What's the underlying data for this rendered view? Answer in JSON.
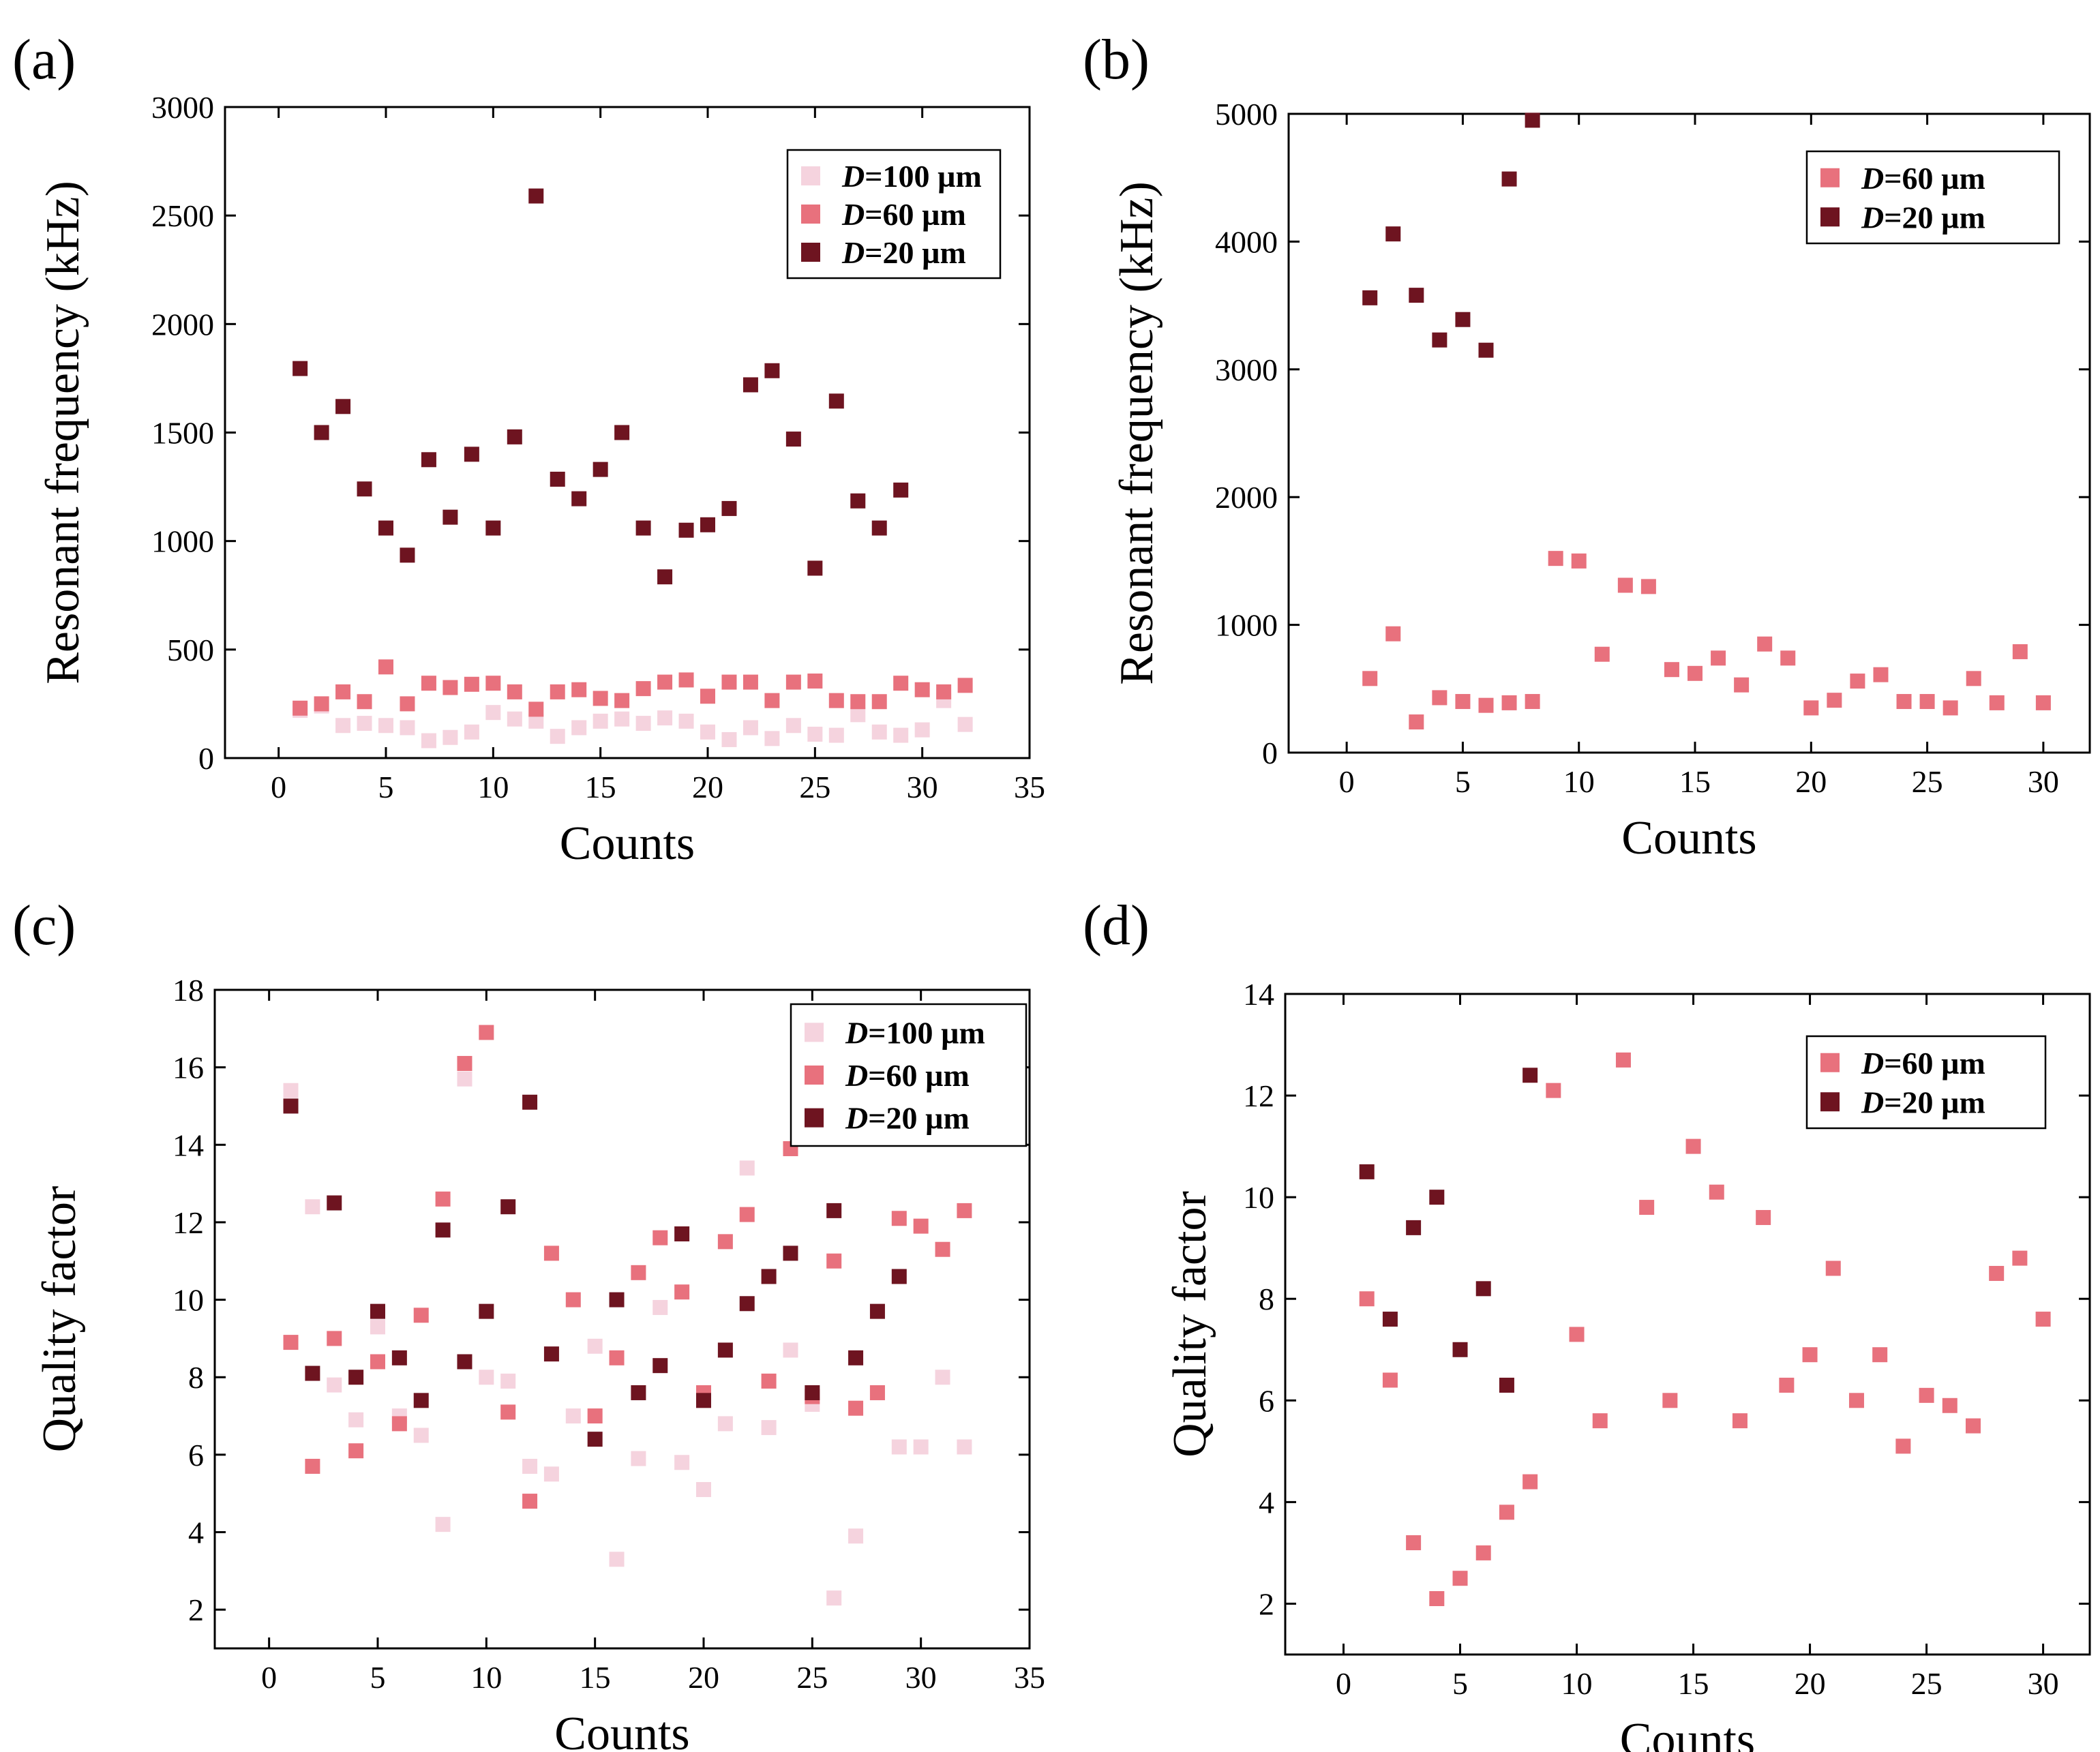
{
  "colors": {
    "d100": "#f5d3de",
    "d60": "#e8717d",
    "d20": "#6e1420"
  },
  "legend": {
    "prefix": "D",
    "items": {
      "d100": "=100 µm",
      "d60": "=60 µm",
      "d20": "=20 µm"
    }
  },
  "chart_data": [
    {
      "panel": "(a)",
      "type": "scatter",
      "xlabel": "Counts",
      "ylabel": "Resonant frequency (kHz)",
      "xlim": [
        -2.5,
        35
      ],
      "ylim": [
        0,
        3000
      ],
      "xticks": [
        0,
        5,
        10,
        15,
        20,
        25,
        30,
        35
      ],
      "yticks": [
        0,
        500,
        1000,
        1500,
        2000,
        2500,
        3000
      ],
      "legend_position": "top-right",
      "series": [
        {
          "key": "d100",
          "name": "D=100 µm",
          "x": [
            1,
            2,
            3,
            4,
            5,
            6,
            7,
            8,
            9,
            10,
            11,
            12,
            13,
            14,
            15,
            16,
            17,
            18,
            19,
            20,
            21,
            22,
            23,
            24,
            25,
            26,
            27,
            28,
            29,
            30,
            31,
            32
          ],
          "y": [
            220,
            240,
            150,
            160,
            150,
            140,
            80,
            95,
            120,
            210,
            180,
            170,
            100,
            140,
            170,
            180,
            160,
            185,
            170,
            120,
            85,
            140,
            90,
            150,
            110,
            105,
            200,
            120,
            105,
            130,
            265,
            155
          ]
        },
        {
          "key": "d60",
          "name": "D=60 µm",
          "x": [
            1,
            2,
            3,
            4,
            5,
            6,
            7,
            8,
            9,
            10,
            11,
            12,
            13,
            14,
            15,
            16,
            17,
            18,
            19,
            20,
            21,
            22,
            23,
            24,
            25,
            26,
            27,
            28,
            29,
            30,
            31,
            32
          ],
          "y": [
            230,
            250,
            305,
            260,
            420,
            250,
            345,
            325,
            340,
            345,
            305,
            225,
            305,
            315,
            275,
            265,
            320,
            350,
            360,
            285,
            350,
            350,
            265,
            350,
            355,
            265,
            260,
            260,
            345,
            315,
            305,
            335
          ]
        },
        {
          "key": "d20",
          "name": "D=20 µm",
          "x": [
            1,
            2,
            3,
            4,
            5,
            6,
            7,
            8,
            9,
            10,
            11,
            12,
            13,
            14,
            15,
            16,
            17,
            18,
            19,
            20,
            21,
            22,
            23,
            24,
            25,
            26,
            27,
            28,
            29
          ],
          "y": [
            1795,
            1500,
            1620,
            1240,
            1060,
            935,
            1375,
            1110,
            1400,
            1060,
            1480,
            2590,
            1285,
            1195,
            1330,
            1500,
            1060,
            835,
            1050,
            1075,
            1150,
            1720,
            1785,
            1470,
            875,
            1645,
            1185,
            1060,
            1235
          ]
        }
      ]
    },
    {
      "panel": "(b)",
      "type": "scatter",
      "xlabel": "Counts",
      "ylabel": "Resonant frequency (kHz)",
      "xlim": [
        -2.5,
        32
      ],
      "ylim": [
        0,
        5000
      ],
      "xticks": [
        0,
        5,
        10,
        15,
        20,
        25,
        30
      ],
      "yticks": [
        0,
        1000,
        2000,
        3000,
        4000,
        5000
      ],
      "legend_position": "top-right",
      "series": [
        {
          "key": "d60",
          "name": "D=60 µm",
          "x": [
            1,
            2,
            3,
            4,
            5,
            6,
            7,
            8,
            9,
            10,
            11,
            12,
            13,
            14,
            15,
            16,
            17,
            18,
            19,
            20,
            21,
            22,
            23,
            24,
            25,
            26,
            27,
            28,
            29,
            30
          ],
          "y": [
            580,
            930,
            240,
            430,
            400,
            370,
            390,
            400,
            1520,
            1500,
            770,
            1310,
            1300,
            650,
            620,
            740,
            530,
            850,
            740,
            350,
            410,
            560,
            610,
            400,
            400,
            350,
            580,
            390,
            790,
            390
          ]
        },
        {
          "key": "d20",
          "name": "D=20 µm",
          "x": [
            1,
            2,
            3,
            4,
            5,
            6,
            7,
            8
          ],
          "y": [
            3560,
            4060,
            3580,
            3230,
            3390,
            3150,
            4490,
            4950
          ]
        }
      ]
    },
    {
      "panel": "(c)",
      "type": "scatter",
      "xlabel": "Counts",
      "ylabel": "Quality factor",
      "xlim": [
        -2.5,
        35
      ],
      "ylim": [
        1,
        18
      ],
      "xticks": [
        0,
        5,
        10,
        15,
        20,
        25,
        30,
        35
      ],
      "yticks": [
        2,
        4,
        6,
        8,
        10,
        12,
        14,
        16,
        18
      ],
      "legend_position": "top-right",
      "series": [
        {
          "key": "d100",
          "name": "D=100 µm",
          "x": [
            1,
            2,
            3,
            4,
            5,
            6,
            7,
            8,
            9,
            10,
            11,
            12,
            13,
            14,
            15,
            16,
            17,
            18,
            19,
            20,
            21,
            22,
            23,
            24,
            25,
            26,
            27,
            28,
            29,
            30,
            31,
            32
          ],
          "y": [
            15.4,
            12.4,
            7.8,
            6.9,
            9.3,
            7.0,
            6.5,
            4.2,
            15.7,
            8.0,
            7.9,
            5.7,
            5.5,
            7.0,
            8.8,
            3.3,
            5.9,
            9.8,
            5.8,
            5.1,
            6.8,
            13.4,
            6.7,
            8.7,
            7.3,
            2.3,
            3.9,
            7.6,
            6.2,
            6.2,
            8.0,
            6.2
          ]
        },
        {
          "key": "d60",
          "name": "D=60 µm",
          "x": [
            1,
            2,
            3,
            4,
            5,
            6,
            7,
            8,
            9,
            10,
            11,
            12,
            13,
            14,
            15,
            16,
            17,
            18,
            19,
            20,
            21,
            22,
            23,
            24,
            25,
            26,
            27,
            28,
            29,
            30,
            31,
            32
          ],
          "y": [
            8.9,
            5.7,
            9.0,
            6.1,
            8.4,
            6.8,
            9.6,
            12.6,
            16.1,
            16.9,
            7.1,
            4.8,
            11.2,
            10.0,
            7.0,
            8.5,
            10.7,
            11.6,
            10.2,
            7.6,
            11.5,
            12.2,
            7.9,
            13.9,
            7.5,
            11.0,
            7.2,
            7.6,
            12.1,
            11.9,
            11.3,
            12.3
          ]
        },
        {
          "key": "d20",
          "name": "D=20 µm",
          "x": [
            1,
            2,
            3,
            4,
            5,
            6,
            7,
            8,
            9,
            10,
            11,
            12,
            13,
            15,
            16,
            17,
            18,
            19,
            20,
            21,
            22,
            23,
            24,
            25,
            26,
            27,
            28,
            29
          ],
          "y": [
            15.0,
            8.1,
            12.5,
            8.0,
            9.7,
            8.5,
            7.4,
            11.8,
            8.4,
            9.7,
            12.4,
            15.1,
            8.6,
            6.4,
            10.0,
            7.6,
            8.3,
            11.7,
            7.4,
            8.7,
            9.9,
            10.6,
            11.2,
            7.6,
            12.3,
            8.5,
            9.7,
            10.6
          ]
        }
      ]
    },
    {
      "panel": "(d)",
      "type": "scatter",
      "xlabel": "Counts",
      "ylabel": "Quality factor",
      "xlim": [
        -2.5,
        32
      ],
      "ylim": [
        1,
        14
      ],
      "xticks": [
        0,
        5,
        10,
        15,
        20,
        25,
        30
      ],
      "yticks": [
        2,
        4,
        6,
        8,
        10,
        12,
        14
      ],
      "legend_position": "top-right",
      "series": [
        {
          "key": "d60",
          "name": "D=60 µm",
          "x": [
            1,
            2,
            3,
            4,
            5,
            6,
            7,
            8,
            9,
            10,
            11,
            12,
            13,
            14,
            15,
            16,
            17,
            18,
            19,
            20,
            21,
            22,
            23,
            24,
            25,
            26,
            27,
            28,
            29,
            30
          ],
          "y": [
            8.0,
            6.4,
            3.2,
            2.1,
            2.5,
            3.0,
            3.8,
            4.4,
            12.1,
            7.3,
            5.6,
            12.7,
            9.8,
            6.0,
            11.0,
            10.1,
            5.6,
            9.6,
            6.3,
            6.9,
            8.6,
            6.0,
            6.9,
            5.1,
            6.1,
            5.9,
            5.5,
            8.5,
            8.8,
            7.6
          ]
        },
        {
          "key": "d20",
          "name": "D=20 µm",
          "x": [
            1,
            2,
            3,
            4,
            5,
            6,
            7,
            8
          ],
          "y": [
            10.5,
            7.6,
            9.4,
            10.0,
            7.0,
            8.2,
            6.3,
            12.4
          ]
        }
      ]
    }
  ]
}
